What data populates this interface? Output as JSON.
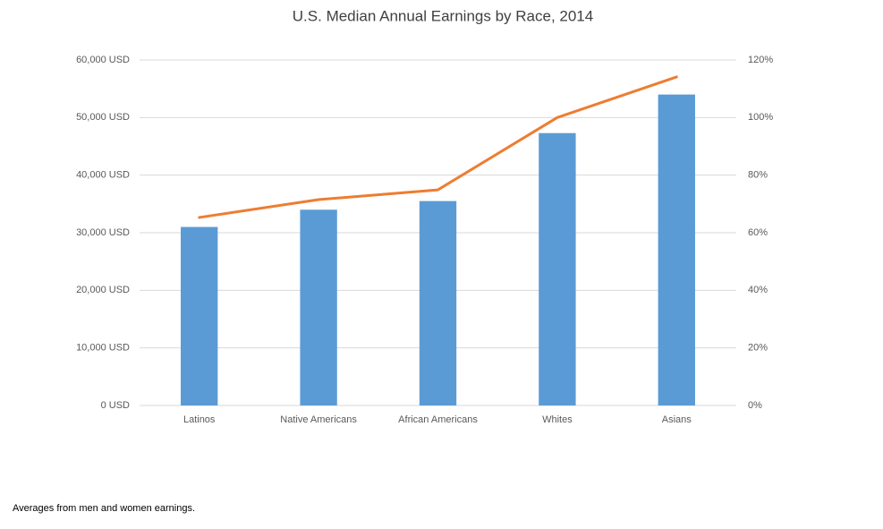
{
  "chart_data": {
    "type": "combo",
    "title": "U.S. Median Annual Earnings by Race, 2014",
    "categories": [
      "Latinos",
      "Native Americans",
      "African Americans",
      "Whites",
      "Asians"
    ],
    "series": [
      {
        "type": "bar",
        "color": "#5b9bd5",
        "values": [
          31000,
          34000,
          35500,
          47300,
          54000
        ]
      },
      {
        "type": "line",
        "color": "#ed7d31",
        "axis": "y2",
        "values": [
          65.3,
          71.5,
          74.9,
          100,
          114.1
        ]
      }
    ],
    "ylim": [
      0,
      60000
    ],
    "yticks": [
      {
        "value": 0,
        "label": "0 USD"
      },
      {
        "value": 10000,
        "label": "10,000 USD"
      },
      {
        "value": 20000,
        "label": "20,000 USD"
      },
      {
        "value": 30000,
        "label": "30,000 USD"
      },
      {
        "value": 40000,
        "label": "40,000 USD"
      },
      {
        "value": 50000,
        "label": "50,000 USD"
      },
      {
        "value": 60000,
        "label": "60,000 USD"
      }
    ],
    "y2lim": [
      0,
      120
    ],
    "y2ticks": [
      {
        "value": 0,
        "label": "0%"
      },
      {
        "value": 20,
        "label": "20%"
      },
      {
        "value": 40,
        "label": "40%"
      },
      {
        "value": 60,
        "label": "60%"
      },
      {
        "value": 80,
        "label": "80%"
      },
      {
        "value": 100,
        "label": "100%"
      },
      {
        "value": 120,
        "label": "120%"
      }
    ],
    "grid": true,
    "note": "Averages from men and women earnings."
  }
}
